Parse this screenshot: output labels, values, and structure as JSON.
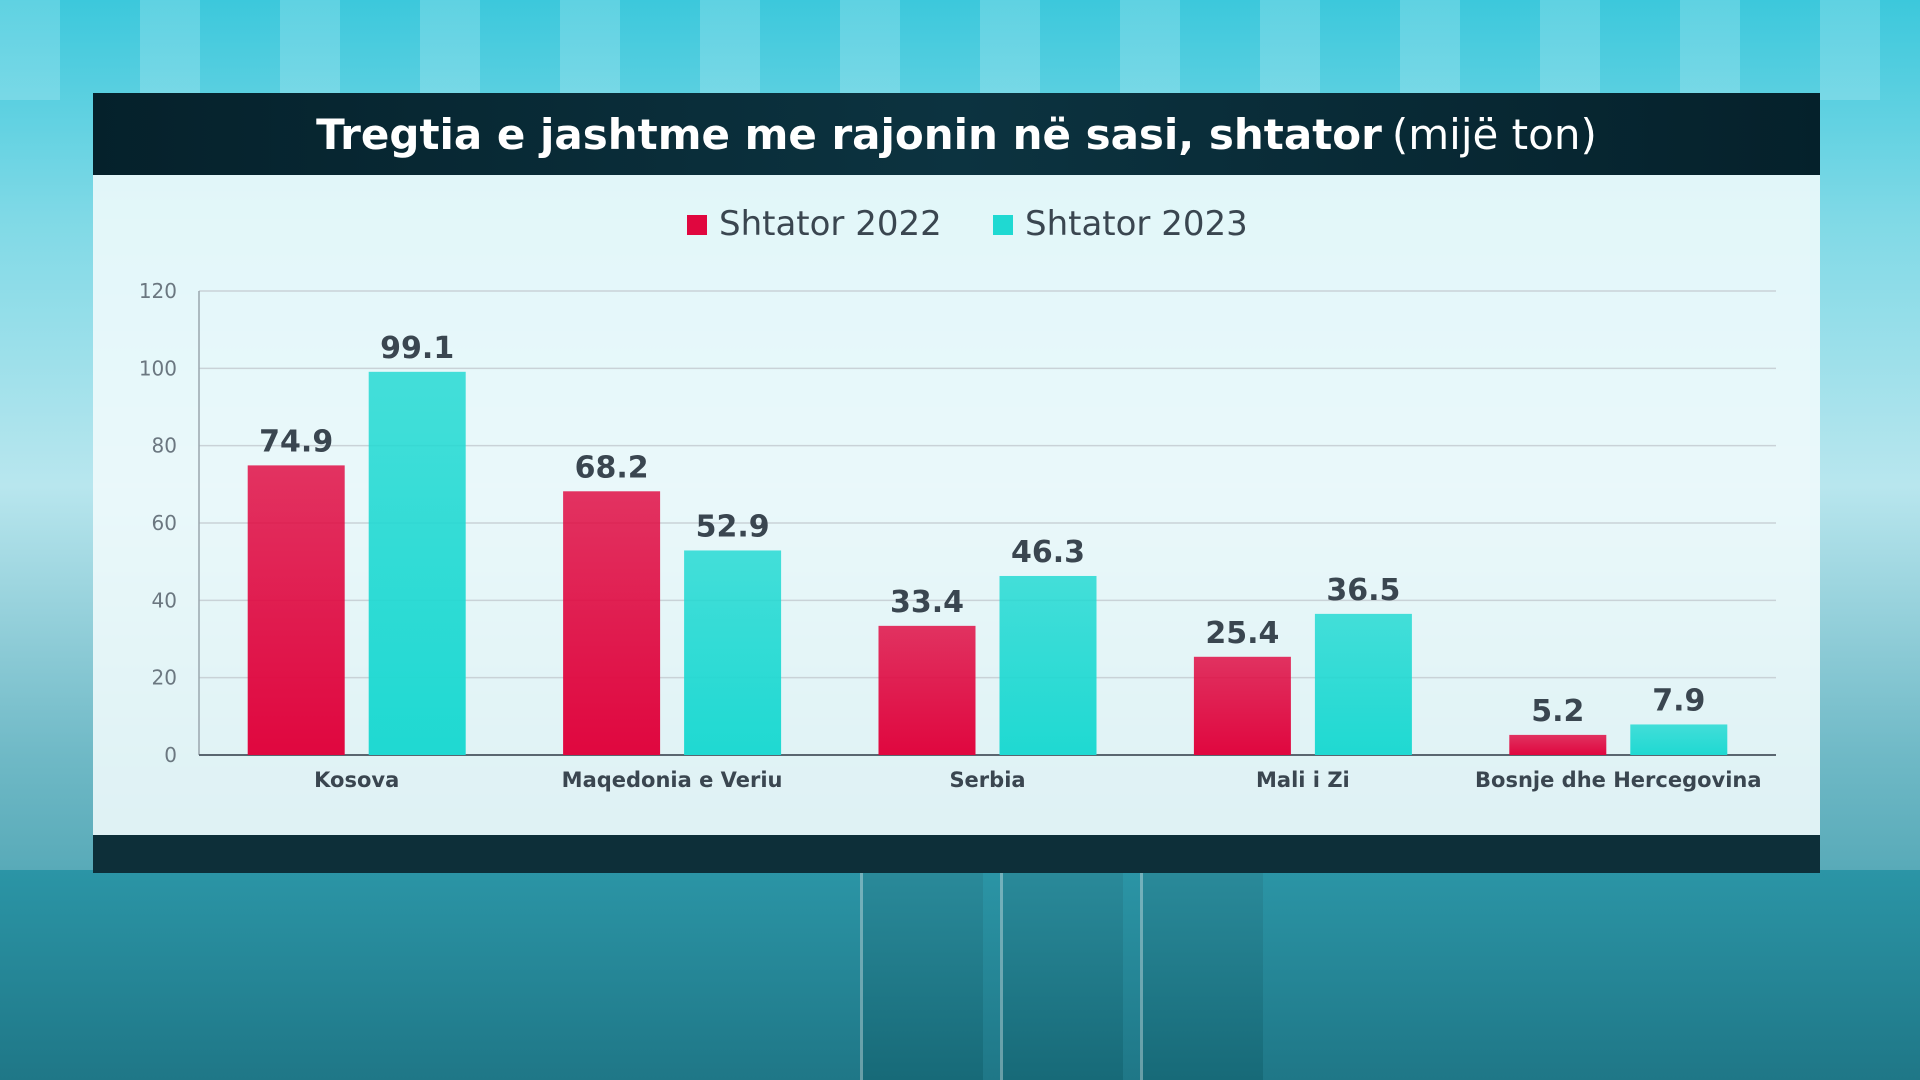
{
  "colors": {
    "series_2022": "#e0073f",
    "series_2023": "#1fd9d2",
    "axis_text": "#6b7780",
    "label_text": "#3a4650",
    "grid": "#c9d2d7"
  },
  "title": {
    "main": "Tregtia e jashtme me rajonin në sasi, shtator",
    "unit": "(mijë ton)"
  },
  "chart_data": {
    "type": "bar",
    "categories": [
      "Kosova",
      "Maqedonia e Veriu",
      "Serbia",
      "Mali i Zi",
      "Bosnje dhe Hercegovina"
    ],
    "series": [
      {
        "name": "Shtator 2022",
        "values": [
          74.9,
          68.2,
          33.4,
          25.4,
          5.2
        ]
      },
      {
        "name": "Shtator 2023",
        "values": [
          99.1,
          52.9,
          46.3,
          36.5,
          7.9
        ]
      }
    ],
    "value_labels": [
      [
        "74.9",
        "68.2",
        "33.4",
        "25.4",
        "5.2"
      ],
      [
        "99.1",
        "52.9",
        "46.3",
        "36.5",
        "7.9"
      ]
    ],
    "yticks": [
      "0",
      "20",
      "40",
      "60",
      "80",
      "100",
      "120"
    ],
    "ylim": [
      0,
      120
    ],
    "grid": true,
    "legend_position": "top-center"
  }
}
